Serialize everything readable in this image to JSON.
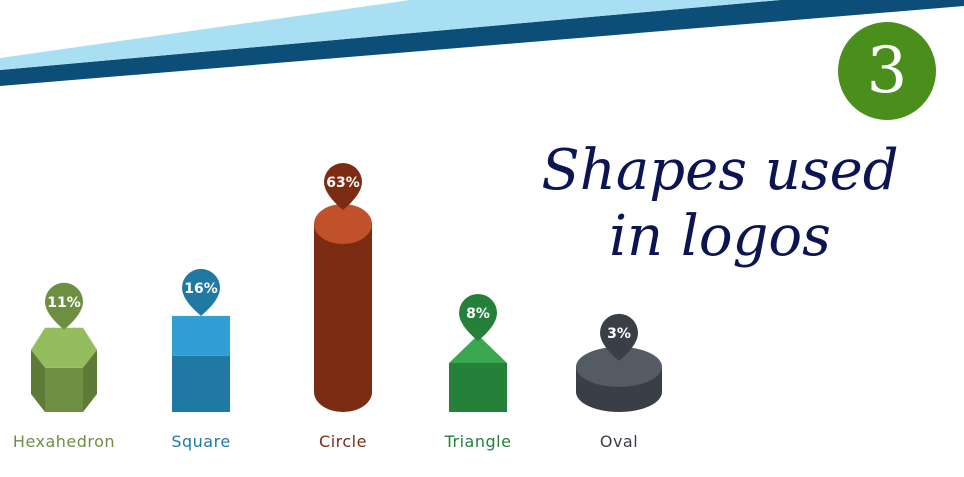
{
  "badge": {
    "number": "3"
  },
  "title_lines": [
    "Shapes used",
    "in logos"
  ],
  "chart_data": {
    "type": "bar",
    "title": "Shapes used in logos",
    "categories": [
      "Hexahedron",
      "Square",
      "Circle",
      "Triangle",
      "Oval"
    ],
    "values": [
      11,
      16,
      63,
      8,
      3
    ],
    "value_labels": [
      "11%",
      "16%",
      "63%",
      "8%",
      "3%"
    ],
    "unit": "%",
    "colors": {
      "Hexahedron": {
        "main": "#6e8f41",
        "light": "#94bd5e",
        "label": "#6e8f41"
      },
      "Square": {
        "main": "#1f79a3",
        "light": "#2f9fd4",
        "label": "#1f79a3"
      },
      "Circle": {
        "main": "#7c2c12",
        "light": "#c0512a",
        "label": "#7c2c12"
      },
      "Triangle": {
        "main": "#25803a",
        "light": "#3aa64f",
        "label": "#25803a"
      },
      "Oval": {
        "main": "#3a3f47",
        "light": "#555b64",
        "label": "#3a3f47"
      }
    },
    "grid": false,
    "legend": "none"
  },
  "colors": {
    "band_dark": "#0c4e77",
    "band_light": "#a8dff3",
    "title": "#0c1452",
    "badge": "#4a8e1c"
  }
}
